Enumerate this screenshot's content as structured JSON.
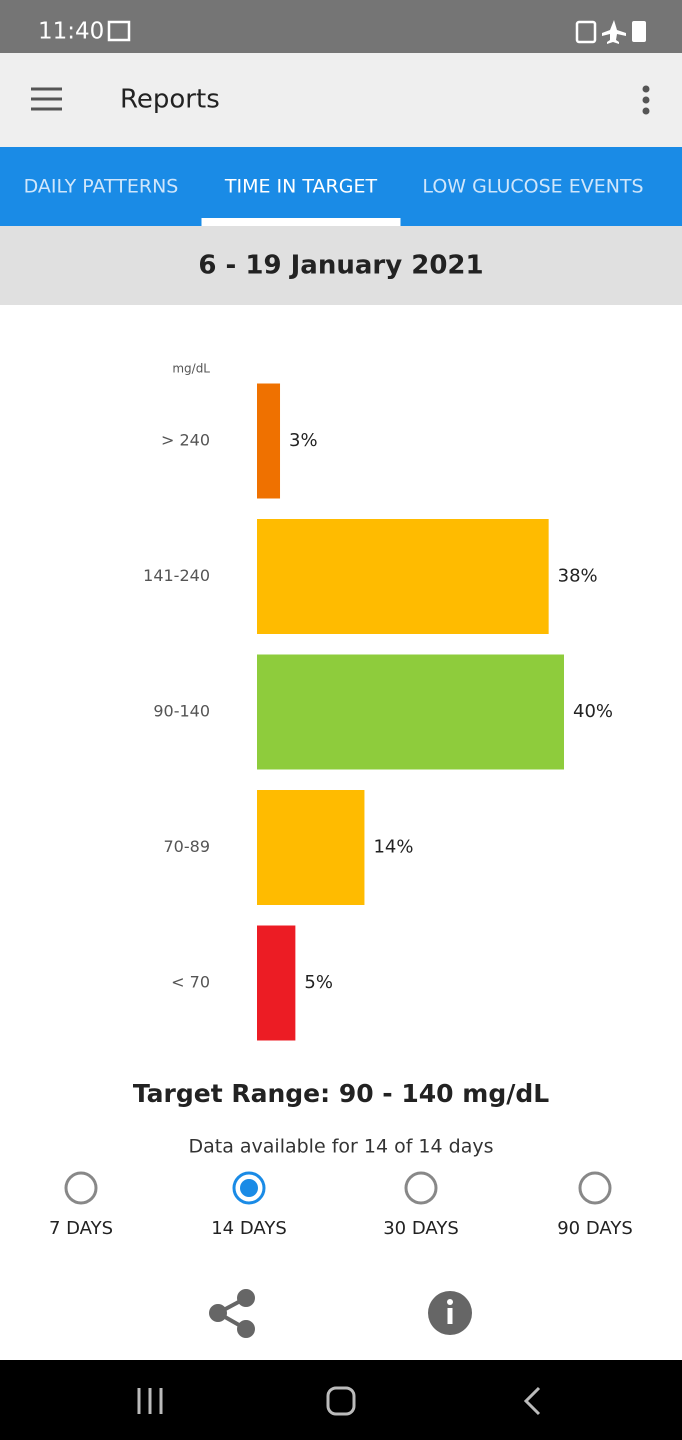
{
  "status_bar": {
    "time": "11:40"
  },
  "app_bar": {
    "title": "Reports"
  },
  "tabs": [
    {
      "label": "DAILY PATTERNS",
      "selected": false
    },
    {
      "label": "TIME IN TARGET",
      "selected": true
    },
    {
      "label": "LOW GLUCOSE EVENTS",
      "selected": false
    }
  ],
  "date_range": "6 - 19 January 2021",
  "chart_data": {
    "type": "hbar",
    "y_label": "mg/dL",
    "categories": [
      "> 240",
      "141-240",
      "90-140",
      "70-89",
      "< 70"
    ],
    "values": [
      3,
      38,
      40,
      14,
      5
    ],
    "value_labels": [
      "3%",
      "38%",
      "40%",
      "14%",
      "5%"
    ],
    "colors": [
      "#ef7100",
      "#ffbb00",
      "#8ecc3c",
      "#ffbb00",
      "#ec1c24"
    ]
  },
  "target_range": "Target Range: 90 - 140 mg/dL",
  "data_available": "Data available for 14 of 14 days",
  "period_options": [
    {
      "label": "7 DAYS",
      "selected": false
    },
    {
      "label": "14 DAYS",
      "selected": true
    },
    {
      "label": "30 DAYS",
      "selected": false
    },
    {
      "label": "90 DAYS",
      "selected": false
    }
  ]
}
